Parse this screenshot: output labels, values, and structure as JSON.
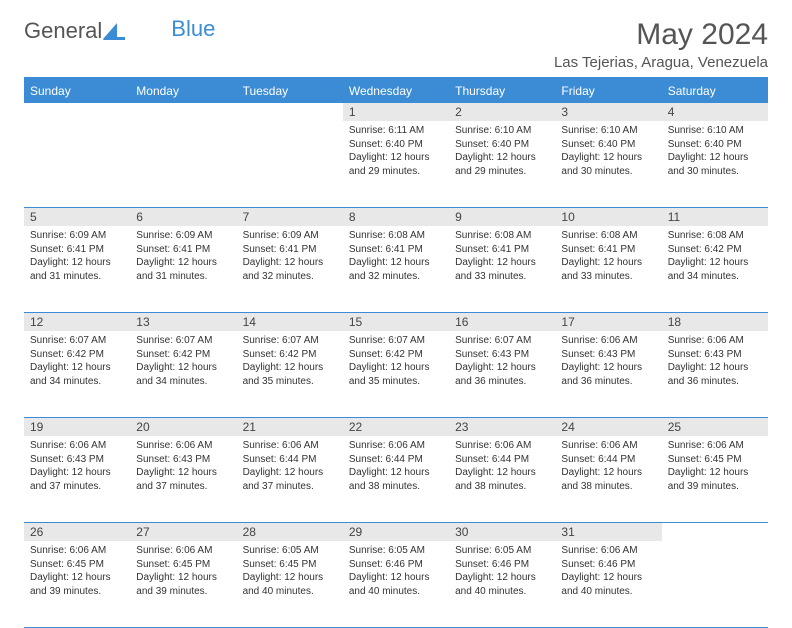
{
  "logo": {
    "textGray": "General",
    "textBlue": "Blue"
  },
  "title": {
    "month": "May 2024",
    "location": "Las Tejerias, Aragua, Venezuela"
  },
  "colors": {
    "header_bar": "#3b8cd4",
    "daynum_bg": "#e8e8e8",
    "text": "#333333",
    "title_text": "#555555"
  },
  "weekdays": [
    "Sunday",
    "Monday",
    "Tuesday",
    "Wednesday",
    "Thursday",
    "Friday",
    "Saturday"
  ],
  "weeks": [
    [
      null,
      null,
      null,
      {
        "n": "1",
        "sr": "6:11 AM",
        "ss": "6:40 PM",
        "dl": "12 hours and 29 minutes."
      },
      {
        "n": "2",
        "sr": "6:10 AM",
        "ss": "6:40 PM",
        "dl": "12 hours and 29 minutes."
      },
      {
        "n": "3",
        "sr": "6:10 AM",
        "ss": "6:40 PM",
        "dl": "12 hours and 30 minutes."
      },
      {
        "n": "4",
        "sr": "6:10 AM",
        "ss": "6:40 PM",
        "dl": "12 hours and 30 minutes."
      }
    ],
    [
      {
        "n": "5",
        "sr": "6:09 AM",
        "ss": "6:41 PM",
        "dl": "12 hours and 31 minutes."
      },
      {
        "n": "6",
        "sr": "6:09 AM",
        "ss": "6:41 PM",
        "dl": "12 hours and 31 minutes."
      },
      {
        "n": "7",
        "sr": "6:09 AM",
        "ss": "6:41 PM",
        "dl": "12 hours and 32 minutes."
      },
      {
        "n": "8",
        "sr": "6:08 AM",
        "ss": "6:41 PM",
        "dl": "12 hours and 32 minutes."
      },
      {
        "n": "9",
        "sr": "6:08 AM",
        "ss": "6:41 PM",
        "dl": "12 hours and 33 minutes."
      },
      {
        "n": "10",
        "sr": "6:08 AM",
        "ss": "6:41 PM",
        "dl": "12 hours and 33 minutes."
      },
      {
        "n": "11",
        "sr": "6:08 AM",
        "ss": "6:42 PM",
        "dl": "12 hours and 34 minutes."
      }
    ],
    [
      {
        "n": "12",
        "sr": "6:07 AM",
        "ss": "6:42 PM",
        "dl": "12 hours and 34 minutes."
      },
      {
        "n": "13",
        "sr": "6:07 AM",
        "ss": "6:42 PM",
        "dl": "12 hours and 34 minutes."
      },
      {
        "n": "14",
        "sr": "6:07 AM",
        "ss": "6:42 PM",
        "dl": "12 hours and 35 minutes."
      },
      {
        "n": "15",
        "sr": "6:07 AM",
        "ss": "6:42 PM",
        "dl": "12 hours and 35 minutes."
      },
      {
        "n": "16",
        "sr": "6:07 AM",
        "ss": "6:43 PM",
        "dl": "12 hours and 36 minutes."
      },
      {
        "n": "17",
        "sr": "6:06 AM",
        "ss": "6:43 PM",
        "dl": "12 hours and 36 minutes."
      },
      {
        "n": "18",
        "sr": "6:06 AM",
        "ss": "6:43 PM",
        "dl": "12 hours and 36 minutes."
      }
    ],
    [
      {
        "n": "19",
        "sr": "6:06 AM",
        "ss": "6:43 PM",
        "dl": "12 hours and 37 minutes."
      },
      {
        "n": "20",
        "sr": "6:06 AM",
        "ss": "6:43 PM",
        "dl": "12 hours and 37 minutes."
      },
      {
        "n": "21",
        "sr": "6:06 AM",
        "ss": "6:44 PM",
        "dl": "12 hours and 37 minutes."
      },
      {
        "n": "22",
        "sr": "6:06 AM",
        "ss": "6:44 PM",
        "dl": "12 hours and 38 minutes."
      },
      {
        "n": "23",
        "sr": "6:06 AM",
        "ss": "6:44 PM",
        "dl": "12 hours and 38 minutes."
      },
      {
        "n": "24",
        "sr": "6:06 AM",
        "ss": "6:44 PM",
        "dl": "12 hours and 38 minutes."
      },
      {
        "n": "25",
        "sr": "6:06 AM",
        "ss": "6:45 PM",
        "dl": "12 hours and 39 minutes."
      }
    ],
    [
      {
        "n": "26",
        "sr": "6:06 AM",
        "ss": "6:45 PM",
        "dl": "12 hours and 39 minutes."
      },
      {
        "n": "27",
        "sr": "6:06 AM",
        "ss": "6:45 PM",
        "dl": "12 hours and 39 minutes."
      },
      {
        "n": "28",
        "sr": "6:05 AM",
        "ss": "6:45 PM",
        "dl": "12 hours and 40 minutes."
      },
      {
        "n": "29",
        "sr": "6:05 AM",
        "ss": "6:46 PM",
        "dl": "12 hours and 40 minutes."
      },
      {
        "n": "30",
        "sr": "6:05 AM",
        "ss": "6:46 PM",
        "dl": "12 hours and 40 minutes."
      },
      {
        "n": "31",
        "sr": "6:06 AM",
        "ss": "6:46 PM",
        "dl": "12 hours and 40 minutes."
      },
      null
    ]
  ],
  "labels": {
    "sunrise": "Sunrise: ",
    "sunset": "Sunset: ",
    "daylight": "Daylight: "
  }
}
